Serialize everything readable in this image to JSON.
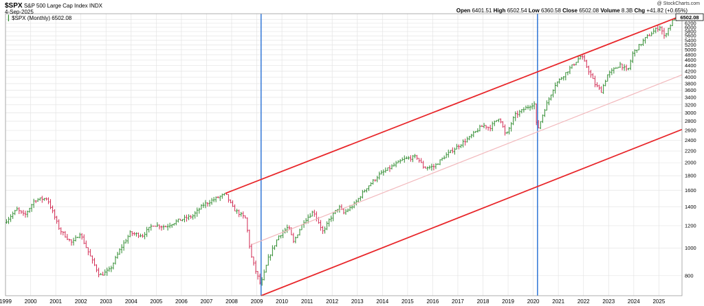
{
  "header": {
    "ticker": "$SPX",
    "name": "S&P 500 Large Cap Index",
    "exchange": "INDX",
    "date": "4-Sep-2025",
    "copyright": "@ StockCharts.com",
    "open_label": "Open",
    "open": "6401.51",
    "high_label": "High",
    "high": "6502.54",
    "low_label": "Low",
    "low": "6360.58",
    "close_label": "Close",
    "close": "6502.08",
    "volume_label": "Volume",
    "volume": "8.3B",
    "chg_label": "Chg",
    "chg": "+41.82 (+0.65%)",
    "legend": "$SPX (Monthly) 6502.08",
    "price_tag": "6502.08"
  },
  "colors": {
    "up": "#2e8b2e",
    "down": "#d22a52",
    "channel": "#e8262a",
    "midline": "#f2b8bc",
    "vline": "#3b7dd8",
    "grid": "#e4e4e4"
  },
  "chart_data": {
    "type": "ohlc",
    "frequency": "monthly",
    "y_scale": "log",
    "ylim": [
      680,
      6700
    ],
    "xlim": [
      1999.0,
      2025.92
    ],
    "x_tick_labels": [
      "1999",
      "2000",
      "2001",
      "2002",
      "2003",
      "2004",
      "2005",
      "2006",
      "2007",
      "2008",
      "2009",
      "2010",
      "2011",
      "2012",
      "2013",
      "2014",
      "2015",
      "2016",
      "2017",
      "2018",
      "2019",
      "2020",
      "2021",
      "2022",
      "2023",
      "2024",
      "2025"
    ],
    "y_tick_labels": [
      800,
      1000,
      1200,
      1400,
      1600,
      1800,
      2000,
      2200,
      2400,
      2600,
      2800,
      3000,
      3200,
      3400,
      3600,
      3800,
      4000,
      4200,
      4400,
      4600,
      4800,
      5000,
      5200,
      5400,
      5600,
      5800,
      6000,
      6200,
      6400
    ],
    "grid": true,
    "price_path": [
      [
        1999.0,
        1230
      ],
      [
        1999.5,
        1370
      ],
      [
        1999.8,
        1300
      ],
      [
        2000.2,
        1480
      ],
      [
        2000.7,
        1500
      ],
      [
        2000.95,
        1320
      ],
      [
        2001.2,
        1160
      ],
      [
        2001.7,
        1040
      ],
      [
        2002.0,
        1130
      ],
      [
        2002.5,
        900
      ],
      [
        2002.8,
        800
      ],
      [
        2003.2,
        840
      ],
      [
        2003.6,
        990
      ],
      [
        2004.0,
        1130
      ],
      [
        2004.5,
        1110
      ],
      [
        2004.9,
        1210
      ],
      [
        2005.4,
        1190
      ],
      [
        2005.9,
        1250
      ],
      [
        2006.5,
        1300
      ],
      [
        2006.9,
        1420
      ],
      [
        2007.5,
        1510
      ],
      [
        2007.8,
        1550
      ],
      [
        2008.1,
        1380
      ],
      [
        2008.6,
        1270
      ],
      [
        2008.8,
        950
      ],
      [
        2009.0,
        830
      ],
      [
        2009.2,
        740
      ],
      [
        2009.5,
        920
      ],
      [
        2009.9,
        1100
      ],
      [
        2010.3,
        1190
      ],
      [
        2010.5,
        1050
      ],
      [
        2010.9,
        1240
      ],
      [
        2011.3,
        1350
      ],
      [
        2011.7,
        1130
      ],
      [
        2011.9,
        1250
      ],
      [
        2012.3,
        1400
      ],
      [
        2012.5,
        1330
      ],
      [
        2012.9,
        1420
      ],
      [
        2013.4,
        1630
      ],
      [
        2013.9,
        1810
      ],
      [
        2014.5,
        1960
      ],
      [
        2014.9,
        2060
      ],
      [
        2015.4,
        2100
      ],
      [
        2015.7,
        1920
      ],
      [
        2016.1,
        1940
      ],
      [
        2016.5,
        2100
      ],
      [
        2016.9,
        2240
      ],
      [
        2017.5,
        2450
      ],
      [
        2017.95,
        2670
      ],
      [
        2018.1,
        2710
      ],
      [
        2018.3,
        2650
      ],
      [
        2018.7,
        2900
      ],
      [
        2018.95,
        2480
      ],
      [
        2019.3,
        2930
      ],
      [
        2019.8,
        3140
      ],
      [
        2020.08,
        3240
      ],
      [
        2020.2,
        2580
      ],
      [
        2020.5,
        3100
      ],
      [
        2020.9,
        3760
      ],
      [
        2021.5,
        4300
      ],
      [
        2021.95,
        4770
      ],
      [
        2022.3,
        4130
      ],
      [
        2022.5,
        3780
      ],
      [
        2022.75,
        3580
      ],
      [
        2023.0,
        4080
      ],
      [
        2023.5,
        4450
      ],
      [
        2023.8,
        4190
      ],
      [
        2024.0,
        4850
      ],
      [
        2024.5,
        5480
      ],
      [
        2024.9,
        5880
      ],
      [
        2025.1,
        6040
      ],
      [
        2025.25,
        5570
      ],
      [
        2025.4,
        5910
      ],
      [
        2025.67,
        6502
      ]
    ],
    "channel_lines": [
      {
        "role": "upper",
        "from": [
          2007.75,
          1560
        ],
        "to": [
          2025.92,
          6600
        ]
      },
      {
        "role": "lower",
        "from": [
          2009.17,
          680
        ],
        "to": [
          2025.92,
          2620
        ]
      },
      {
        "role": "mid",
        "from": [
          2008.8,
          1030
        ],
        "to": [
          2025.92,
          4080
        ]
      }
    ],
    "vertical_markers": [
      2009.17,
      2020.17
    ]
  }
}
